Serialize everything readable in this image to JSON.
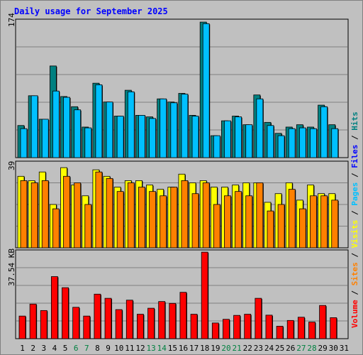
{
  "title": "Daily usage for September 2025",
  "colors": {
    "hits": "#008080",
    "files": "#0000ff",
    "pages": "#00c0ff",
    "visits": "#ffff00",
    "sites": "#ff8000",
    "volume": "#ff0000",
    "weekday_label": "#000000",
    "weekend_label": "#008040"
  },
  "legend": {
    "volume": "Volume",
    "sites": "Sites",
    "visits": "Visits",
    "pages": "Pages",
    "files": "Files",
    "hits": "Hits",
    "separator": " / "
  },
  "chart_data": {
    "type": "bar",
    "days": [
      "1",
      "2",
      "3",
      "4",
      "5",
      "6",
      "7",
      "8",
      "9",
      "10",
      "11",
      "12",
      "13",
      "14",
      "15",
      "16",
      "17",
      "18",
      "19",
      "20",
      "21",
      "22",
      "23",
      "24",
      "25",
      "26",
      "27",
      "28",
      "29",
      "30",
      "31"
    ],
    "weekend_days": [
      "6",
      "7",
      "13",
      "14",
      "20",
      "21",
      "27",
      "28"
    ],
    "panels": [
      {
        "name": "hits_files",
        "ymax_label": "174",
        "ymax": 174,
        "series": [
          {
            "name": "Hits",
            "values": [
              41,
              79,
              49,
              117,
              78,
              65,
              39,
              95,
              71,
              53,
              86,
              54,
              52,
              75,
              71,
              82,
              54,
              173,
              28,
              47,
              53,
              42,
              80,
              45,
              31,
              39,
              42,
              39,
              67,
              42,
              null
            ]
          },
          {
            "name": "Files",
            "values": [
              37,
              79,
              49,
              85,
              77,
              61,
              38,
              93,
              71,
              53,
              84,
              54,
              50,
              75,
              70,
              81,
              53,
              171,
              28,
              47,
              52,
              42,
              75,
              41,
              28,
              37,
              38,
              37,
              65,
              37,
              null
            ]
          }
        ]
      },
      {
        "name": "visits_sites",
        "ymax_label": "39",
        "ymax": 39,
        "series": [
          {
            "name": "Visits",
            "values": [
              33,
              31,
              35,
              20,
              37,
              29,
              24,
              36,
              33,
              28,
              31,
              31,
              29,
              27,
              28,
              34,
              30,
              31,
              28,
              28,
              29,
              30,
              30,
              21,
              25,
              30,
              22,
              29,
              25,
              25,
              null
            ]
          },
          {
            "name": "Sites",
            "values": [
              31,
              30,
              31,
              18,
              33,
              30,
              20,
              35,
              32,
              26,
              30,
              28,
              26,
              24,
              28,
              31,
              25,
              30,
              20,
              24,
              26,
              24,
              30,
              17,
              20,
              27,
              18,
              24,
              24,
              22,
              null
            ]
          }
        ]
      },
      {
        "name": "volume",
        "ymax_label": "37.54 KB",
        "ymax": 37.54,
        "series": [
          {
            "name": "Volume",
            "values": [
              9.8,
              15,
              12.2,
              26.9,
              22.1,
              13.6,
              9.8,
              19.3,
              17.5,
              12.6,
              16.7,
              10.6,
              13.2,
              16.1,
              15.3,
              20.1,
              10.6,
              37.5,
              6.8,
              8.4,
              10.1,
              10.6,
              17.5,
              10.2,
              5.4,
              7.9,
              9.3,
              7.2,
              14.4,
              9.1,
              null
            ]
          }
        ]
      }
    ]
  }
}
